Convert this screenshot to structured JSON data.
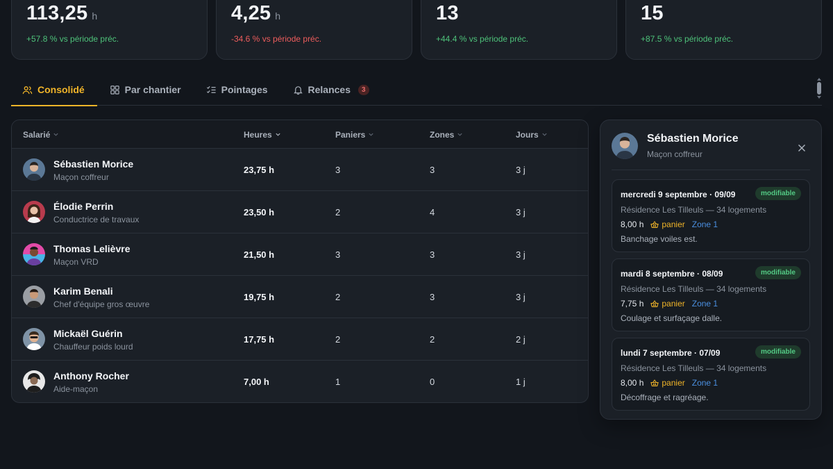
{
  "stats": [
    {
      "value": "113,25",
      "unit": "h",
      "delta": "+57.8 % vs période préc.",
      "trend": "up"
    },
    {
      "value": "4,25",
      "unit": "h",
      "delta": "-34.6 % vs période préc.",
      "trend": "down"
    },
    {
      "value": "13",
      "unit": "",
      "delta": "+44.4 % vs période préc.",
      "trend": "up"
    },
    {
      "value": "15",
      "unit": "",
      "delta": "+87.5 % vs période préc.",
      "trend": "up"
    }
  ],
  "tabs": [
    {
      "label": "Consolidé",
      "icon": "users-icon",
      "active": true
    },
    {
      "label": "Par chantier",
      "icon": "grid-icon"
    },
    {
      "label": "Pointages",
      "icon": "checklist-icon"
    },
    {
      "label": "Relances",
      "icon": "bell-icon",
      "badge": "3"
    }
  ],
  "table": {
    "headers": {
      "name": "Salarié",
      "hours": "Heures",
      "baskets": "Paniers",
      "zones": "Zones",
      "days": "Jours"
    },
    "rows": [
      {
        "name": "Sébastien Morice",
        "role": "Maçon coffreur",
        "hours": "23,75 h",
        "baskets": "3",
        "zones": "3",
        "days": "3 j",
        "avatar_color": "#6f8fb0"
      },
      {
        "name": "Élodie Perrin",
        "role": "Conductrice de travaux",
        "hours": "23,50 h",
        "baskets": "2",
        "zones": "4",
        "days": "3 j",
        "avatar_color": "#c04a5a"
      },
      {
        "name": "Thomas Lelièvre",
        "role": "Maçon VRD",
        "hours": "21,50 h",
        "baskets": "3",
        "zones": "3",
        "days": "3 j",
        "avatar_color": "#d94fb8"
      },
      {
        "name": "Karim Benali",
        "role": "Chef d'équipe gros œuvre",
        "hours": "19,75 h",
        "baskets": "2",
        "zones": "3",
        "days": "3 j",
        "avatar_color": "#8a8f96"
      },
      {
        "name": "Mickaël Guérin",
        "role": "Chauffeur poids lourd",
        "hours": "17,75 h",
        "baskets": "2",
        "zones": "2",
        "days": "2 j",
        "avatar_color": "#7d8fa0"
      },
      {
        "name": "Anthony Rocher",
        "role": "Aide-maçon",
        "hours": "7,00 h",
        "baskets": "1",
        "zones": "0",
        "days": "1 j",
        "avatar_color": "#d9d9d9"
      }
    ]
  },
  "panel": {
    "name": "Sébastien Morice",
    "role": "Maçon coffreur",
    "entries": [
      {
        "date": "mercredi 9 septembre · 09/09",
        "badge": "modifiable",
        "site": "Résidence Les Tilleuls — 34 logements",
        "hours": "8,00 h",
        "basket": "panier",
        "zone": "Zone 1",
        "note": "Banchage voiles est."
      },
      {
        "date": "mardi 8 septembre · 08/09",
        "badge": "modifiable",
        "site": "Résidence Les Tilleuls — 34 logements",
        "hours": "7,75 h",
        "basket": "panier",
        "zone": "Zone 1",
        "note": "Coulage et surfaçage dalle."
      },
      {
        "date": "lundi 7 septembre · 07/09",
        "badge": "modifiable",
        "site": "Résidence Les Tilleuls — 34 logements",
        "hours": "8,00 h",
        "basket": "panier",
        "zone": "Zone 1",
        "note": "Décoffrage et ragréage."
      }
    ]
  },
  "colors": {
    "accent": "#f0b429",
    "positive": "#4ec27a",
    "negative": "#ee5d5d",
    "zone": "#4a8fe0",
    "badge_bg": "#1f3b2c"
  }
}
